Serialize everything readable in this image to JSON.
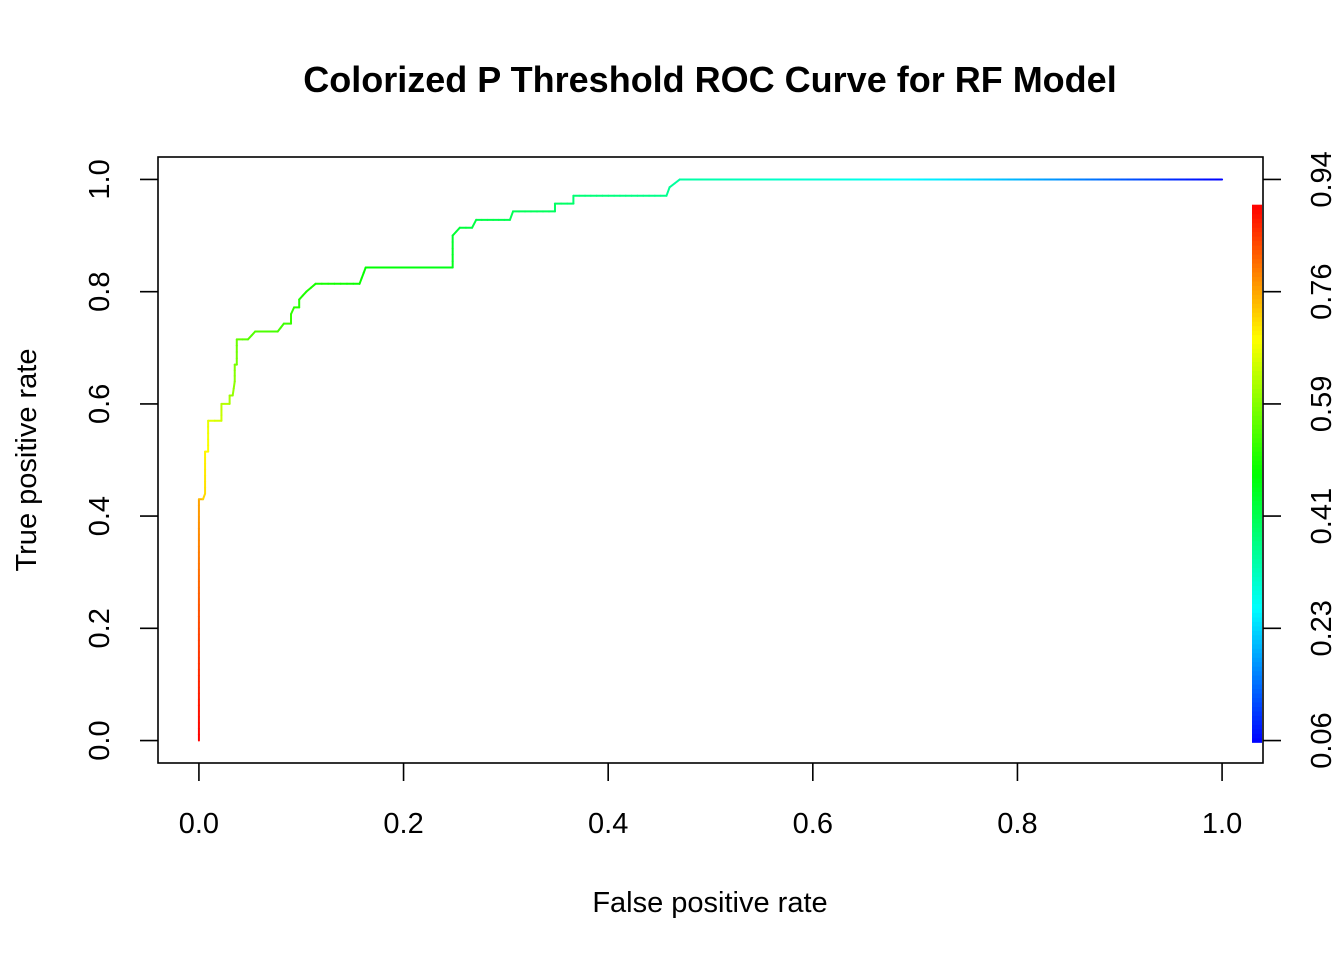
{
  "chart_data": {
    "type": "line",
    "title": "Colorized P Threshold ROC Curve for RF Model",
    "xlabel": "False positive rate",
    "ylabel": "True positive rate",
    "xlim": [
      -0.04,
      1.04
    ],
    "ylim": [
      -0.04,
      1.04
    ],
    "x_ticks": [
      "0.0",
      "0.2",
      "0.4",
      "0.6",
      "0.8",
      "1.0"
    ],
    "y_ticks": [
      "0.0",
      "0.2",
      "0.4",
      "0.6",
      "0.8",
      "1.0"
    ],
    "colorbar": {
      "range": [
        0.06,
        0.94
      ],
      "ticks": [
        "0.06",
        "0.23",
        "0.41",
        "0.59",
        "0.76",
        "0.94"
      ],
      "colormap": "rainbow (blue-cyan-green-yellow-red)"
    },
    "grid": false,
    "series": [
      {
        "points": [
          [
            0.0,
            0.0,
            0.94
          ],
          [
            0.0,
            0.2,
            0.88
          ],
          [
            0.0,
            0.43,
            0.8
          ],
          [
            0.004,
            0.43,
            0.76
          ],
          [
            0.006,
            0.44,
            0.75
          ],
          [
            0.006,
            0.515,
            0.73
          ],
          [
            0.009,
            0.515,
            0.72
          ],
          [
            0.009,
            0.57,
            0.7
          ],
          [
            0.022,
            0.57,
            0.68
          ],
          [
            0.022,
            0.6,
            0.66
          ],
          [
            0.03,
            0.6,
            0.65
          ],
          [
            0.03,
            0.615,
            0.64
          ],
          [
            0.033,
            0.615,
            0.63
          ],
          [
            0.035,
            0.64,
            0.62
          ],
          [
            0.035,
            0.67,
            0.61
          ],
          [
            0.037,
            0.67,
            0.6
          ],
          [
            0.037,
            0.715,
            0.59
          ],
          [
            0.048,
            0.715,
            0.575
          ],
          [
            0.055,
            0.729,
            0.57
          ],
          [
            0.077,
            0.729,
            0.56
          ],
          [
            0.083,
            0.743,
            0.555
          ],
          [
            0.09,
            0.743,
            0.55
          ],
          [
            0.09,
            0.76,
            0.545
          ],
          [
            0.093,
            0.772,
            0.54
          ],
          [
            0.098,
            0.772,
            0.535
          ],
          [
            0.098,
            0.786,
            0.53
          ],
          [
            0.105,
            0.8,
            0.525
          ],
          [
            0.114,
            0.814,
            0.52
          ],
          [
            0.157,
            0.814,
            0.51
          ],
          [
            0.163,
            0.843,
            0.5
          ],
          [
            0.248,
            0.843,
            0.48
          ],
          [
            0.248,
            0.9,
            0.46
          ],
          [
            0.255,
            0.914,
            0.45
          ],
          [
            0.267,
            0.914,
            0.445
          ],
          [
            0.271,
            0.928,
            0.44
          ],
          [
            0.304,
            0.928,
            0.43
          ],
          [
            0.307,
            0.943,
            0.425
          ],
          [
            0.348,
            0.943,
            0.42
          ],
          [
            0.348,
            0.957,
            0.415
          ],
          [
            0.366,
            0.957,
            0.41
          ],
          [
            0.366,
            0.971,
            0.4
          ],
          [
            0.457,
            0.971,
            0.38
          ],
          [
            0.46,
            0.986,
            0.37
          ],
          [
            0.47,
            1.0,
            0.36
          ],
          [
            0.65,
            1.0,
            0.3
          ],
          [
            0.75,
            1.0,
            0.25
          ],
          [
            0.85,
            1.0,
            0.18
          ],
          [
            1.0,
            1.0,
            0.06
          ]
        ]
      }
    ]
  }
}
